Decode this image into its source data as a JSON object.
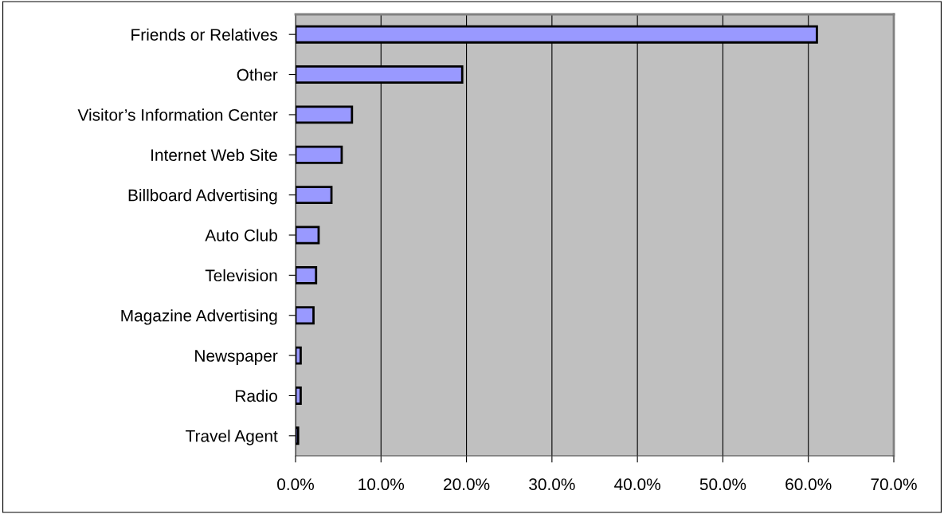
{
  "chart_data": {
    "type": "bar",
    "orientation": "horizontal",
    "categories": [
      "Friends or Relatives",
      "Other",
      "Visitor’s Information Center",
      "Internet Web Site",
      "Billboard Advertising",
      "Auto Club",
      "Television",
      "Magazine Advertising",
      "Newspaper",
      "Radio",
      "Travel Agent"
    ],
    "values": [
      61.0,
      19.5,
      6.6,
      5.4,
      4.2,
      2.7,
      2.4,
      2.1,
      0.6,
      0.6,
      0.3
    ],
    "color": "#9999ff",
    "xlim": [
      0,
      70
    ],
    "xticks": [
      {
        "value": 0,
        "label": "0.0%"
      },
      {
        "value": 10,
        "label": "10.0%"
      },
      {
        "value": 20,
        "label": "20.0%"
      },
      {
        "value": 30,
        "label": "30.0%"
      },
      {
        "value": 40,
        "label": "40.0%"
      },
      {
        "value": 50,
        "label": "50.0%"
      },
      {
        "value": 60,
        "label": "60.0%"
      },
      {
        "value": 70,
        "label": "70.0%"
      }
    ],
    "grid": "x",
    "legend": false
  }
}
